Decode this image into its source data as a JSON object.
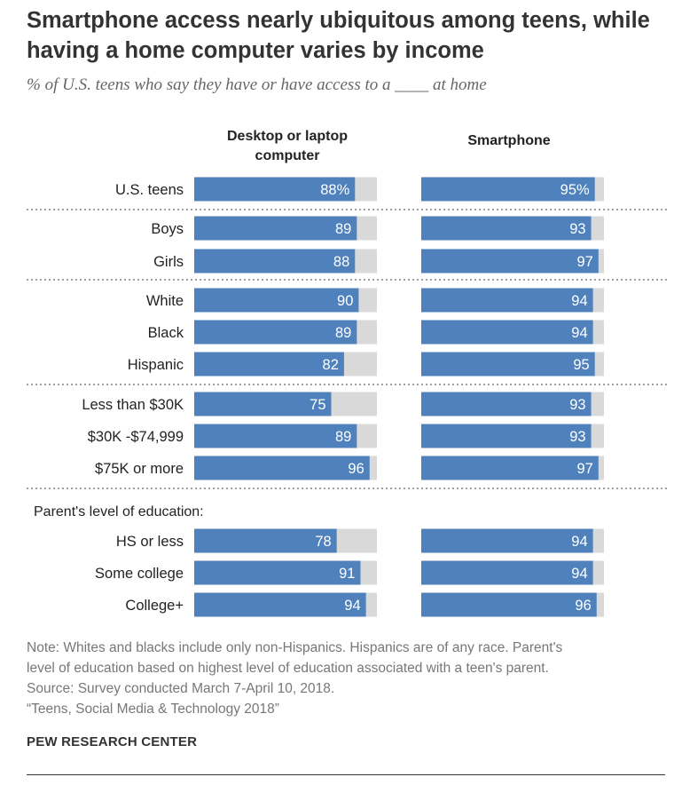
{
  "title": "Smartphone access nearly ubiquitous among teens, while having a home computer varies by income",
  "subtitle": "% of U.S. teens who say they have or have access to a ____ at home",
  "chart_data": {
    "type": "bar",
    "orientation": "horizontal",
    "xlim": [
      0,
      100
    ],
    "value_suffix_first_row": "%",
    "columns": [
      "Desktop or laptop computer",
      "Smartphone"
    ],
    "group_labels": [
      "Parent's level of education:"
    ],
    "categories": [
      "U.S. teens",
      "Boys",
      "Girls",
      "White",
      "Black",
      "Hispanic",
      "Less than $30K",
      "$30K -$74,999",
      "$75K or more",
      "HS or less",
      "Some college",
      "College+"
    ],
    "series": [
      {
        "name": "Desktop or laptop computer",
        "values": [
          88,
          89,
          88,
          90,
          89,
          82,
          75,
          89,
          96,
          78,
          91,
          94
        ],
        "labels": [
          "88%",
          "89",
          "88",
          "90",
          "89",
          "82",
          "75",
          "89",
          "96",
          "78",
          "91",
          "94"
        ]
      },
      {
        "name": "Smartphone",
        "values": [
          95,
          93,
          97,
          94,
          94,
          95,
          93,
          93,
          97,
          94,
          94,
          96
        ],
        "labels": [
          "95%",
          "93",
          "97",
          "94",
          "94",
          "95",
          "93",
          "93",
          "97",
          "94",
          "94",
          "96"
        ]
      }
    ],
    "colors": {
      "bar": "#4f81bd",
      "track": "#d9d9d9",
      "value_text": "#ffffff",
      "separator": "#666666"
    }
  },
  "notes": [
    "Note: Whites and blacks include only non-Hispanics. Hispanics are of any race. Parent's",
    "level of education based on highest level of education associated with a teen's parent.",
    "Source: Survey conducted March 7-April 10, 2018.",
    "“Teens, Social Media & Technology 2018”"
  ],
  "brand": "PEW RESEARCH CENTER"
}
